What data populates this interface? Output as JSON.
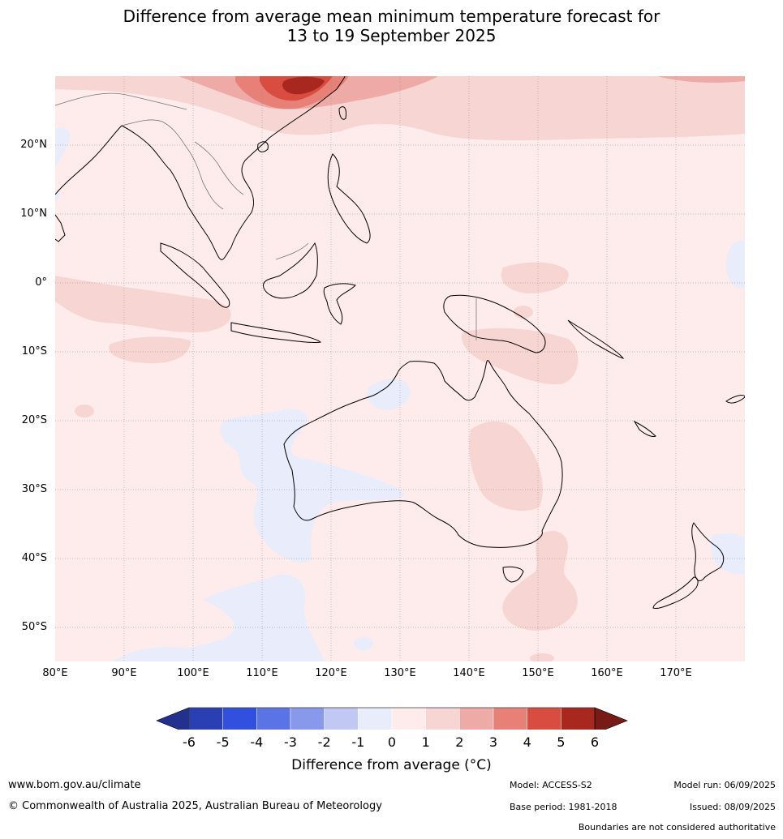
{
  "title": {
    "line1": "Difference from average mean minimum temperature forecast for",
    "line2": "13 to 19 September 2025"
  },
  "lat_labels": [
    "20°N",
    "10°N",
    "0°",
    "10°S",
    "20°S",
    "30°S",
    "40°S",
    "50°S"
  ],
  "lon_labels": [
    "80°E",
    "90°E",
    "100°E",
    "110°E",
    "120°E",
    "130°E",
    "140°E",
    "150°E",
    "160°E",
    "170°E"
  ],
  "colorbar": {
    "ticks": [
      "-6",
      "-5",
      "-4",
      "-3",
      "-2",
      "-1",
      "0",
      "1",
      "2",
      "3",
      "4",
      "5",
      "6"
    ],
    "colors": [
      "#22318f",
      "#2a3fb3",
      "#3150e0",
      "#5b74e5",
      "#8898eb",
      "#c0c8f3",
      "#e8ecfb",
      "#fdeceb",
      "#f6d5d3",
      "#edaaa6",
      "#e78178",
      "#d94c40",
      "#a8271f",
      "#7a1a17"
    ],
    "title": "Difference from average (°C)"
  },
  "footer": {
    "website": "www.bom.gov.au/climate",
    "copyright": "© Commonwealth of Australia 2025, Australian Bureau of Meteorology",
    "model": "Model: ACCESS-S2",
    "model_run": "Model run: 06/09/2025",
    "base_period": "Base period: 1981-2018",
    "issued": "Issued: 08/09/2025",
    "boundaries": "Boundaries are not considered authoritative"
  }
}
